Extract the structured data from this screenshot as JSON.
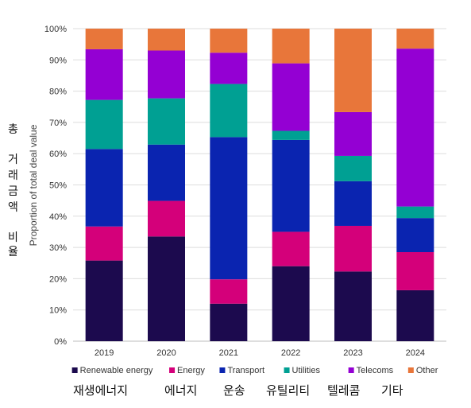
{
  "chart_data": {
    "type": "bar",
    "stacked": true,
    "categories": [
      "2019",
      "2020",
      "2021",
      "2022",
      "2023",
      "2024"
    ],
    "ylabel": "Proportion of total deal value",
    "ylim": [
      0,
      100
    ],
    "yticks": [
      "0%",
      "10%",
      "20%",
      "30%",
      "40%",
      "50%",
      "60%",
      "70%",
      "80%",
      "90%",
      "100%"
    ],
    "grid": true,
    "legend_position": "bottom",
    "series": [
      {
        "name": "Renewable energy",
        "color": "#1c0a4e",
        "values": [
          25.8,
          33.5,
          12.0,
          24.0,
          22.3,
          16.3
        ]
      },
      {
        "name": "Energy",
        "color": "#d4007a",
        "values": [
          10.9,
          11.4,
          7.8,
          11.0,
          14.6,
          12.2
        ]
      },
      {
        "name": "Transport",
        "color": "#0a24b0",
        "values": [
          24.8,
          18.0,
          45.5,
          29.4,
          14.3,
          10.9
        ]
      },
      {
        "name": "Utilities",
        "color": "#00a093",
        "values": [
          15.7,
          14.8,
          17.0,
          2.9,
          8.1,
          3.7
        ]
      },
      {
        "name": "Telecoms",
        "color": "#9400d3",
        "values": [
          16.2,
          15.3,
          10.0,
          21.6,
          14.0,
          50.5
        ]
      },
      {
        "name": "Other",
        "color": "#e8763a",
        "values": [
          6.6,
          7.0,
          7.7,
          11.1,
          26.7,
          6.4
        ]
      }
    ]
  },
  "annotations": {
    "korean_ylabel_lines": [
      "총",
      "거",
      "래",
      "금",
      "액",
      "",
      "비",
      "율"
    ],
    "korean_legend": [
      "재생에너지",
      "에너지",
      "운송",
      "유틸리티",
      "텔레콤",
      "기타"
    ]
  }
}
